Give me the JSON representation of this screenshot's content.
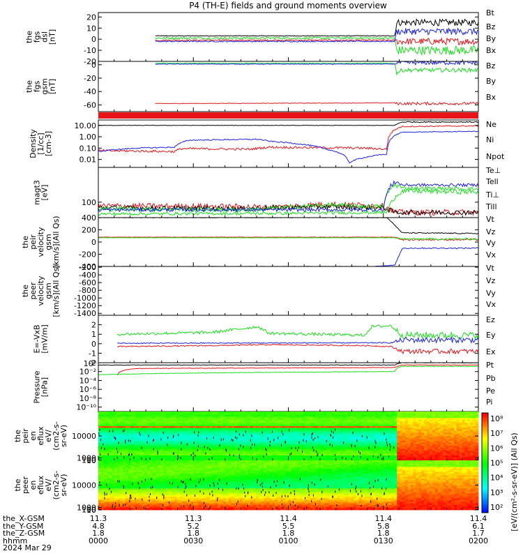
{
  "title": "P4 (TH-E) fields and ground moments overview",
  "colors": {
    "black": "#000000",
    "red": "#e8141a",
    "green": "#18e01c",
    "blue": "#1b22e6"
  },
  "chart_data": [
    {
      "type": "line",
      "name": "fgs_dsl",
      "ylabel_lines": [
        "the",
        "fgs",
        "dsl",
        "[nT]"
      ],
      "ylim": [
        -20,
        24
      ],
      "yticks": [
        20,
        10,
        0,
        -10,
        -20
      ],
      "legend": [
        {
          "label": "Bt",
          "color": "black"
        },
        {
          "label": "Bz",
          "color": "red"
        },
        {
          "label": "By",
          "color": "green"
        },
        {
          "label": "Bx",
          "color": "blue"
        }
      ],
      "series": [
        {
          "name": "Bt",
          "color": "black",
          "x": [
            0.15,
            0.78,
            0.785,
            1.0
          ],
          "y": [
            3,
            3,
            15,
            15
          ],
          "noise": [
            0.3,
            0.3,
            3,
            3
          ]
        },
        {
          "name": "Bz",
          "color": "red",
          "x": [
            0.15,
            0.78,
            0.785,
            1.0
          ],
          "y": [
            -1,
            -1,
            -2,
            -2
          ],
          "noise": [
            0.6,
            0.6,
            3,
            3
          ]
        },
        {
          "name": "By",
          "color": "green",
          "x": [
            0.15,
            0.78,
            0.785,
            1.0
          ],
          "y": [
            1,
            1,
            -10,
            -10
          ],
          "noise": [
            1,
            1,
            4,
            4
          ]
        },
        {
          "name": "Bx",
          "color": "blue",
          "x": [
            0.15,
            0.78,
            0.785,
            1.0
          ],
          "y": [
            -2,
            -2,
            7,
            7
          ],
          "noise": [
            0.5,
            0.5,
            3,
            3
          ]
        }
      ]
    },
    {
      "type": "line",
      "name": "fgs_gsm",
      "ylabel_lines": [
        "the",
        "fgs",
        "gsm",
        "[nT]"
      ],
      "ylim": [
        -70,
        5
      ],
      "yticks": [
        0,
        -20,
        -40,
        -60
      ],
      "legend": [
        {
          "label": "Bz",
          "color": "red"
        },
        {
          "label": "By",
          "color": "green"
        },
        {
          "label": "Bx",
          "color": "blue"
        }
      ],
      "series": [
        {
          "name": "Bz",
          "color": "red",
          "x": [
            0.15,
            0.78,
            0.785,
            1.0
          ],
          "y": [
            -58,
            -57,
            -58,
            -58
          ],
          "noise": [
            0.4,
            0.4,
            2,
            2
          ]
        },
        {
          "name": "By",
          "color": "green",
          "x": [
            0.15,
            0.78,
            0.785,
            0.8,
            1.0
          ],
          "y": [
            2,
            2,
            -12,
            -8,
            -8
          ],
          "noise": [
            0.5,
            0.5,
            3,
            3,
            3
          ]
        },
        {
          "name": "Bx",
          "color": "blue",
          "x": [
            0.15,
            0.78,
            0.785,
            1.0
          ],
          "y": [
            1,
            1,
            3,
            3
          ],
          "noise": [
            0.4,
            0.4,
            3,
            3
          ]
        }
      ]
    },
    {
      "type": "line",
      "name": "density",
      "scale": "log",
      "ylabel_lines": [
        "Density",
        "[1/cc]",
        "[cm-3]"
      ],
      "ylim": [
        0.002,
        30
      ],
      "yticks": [
        10,
        1,
        0.1,
        0.01
      ],
      "ytick_labels": [
        "10.00",
        "1.00",
        "0.10",
        "0.01"
      ],
      "legend": [
        {
          "label": "Ne",
          "color": "red"
        },
        {
          "label": "Ni",
          "color": "black"
        },
        {
          "label": "Npot",
          "color": "blue"
        },
        {
          "label": "Te⊥",
          "color": "red"
        }
      ],
      "series": [
        {
          "name": "Ni",
          "color": "black",
          "x": [
            0.0,
            0.78,
            0.8,
            1.0
          ],
          "y": [
            10,
            10,
            20,
            20
          ],
          "noise": [
            0.02,
            0.02,
            0.05,
            0.05
          ]
        },
        {
          "name": "Ne",
          "color": "red",
          "x": [
            0.0,
            0.2,
            0.22,
            0.4,
            0.45,
            0.7,
            0.76,
            0.8,
            1.0
          ],
          "y": [
            0.06,
            0.05,
            0.09,
            0.08,
            0.12,
            0.1,
            0.08,
            8,
            9
          ],
          "noise": [
            0.1,
            0.1,
            0.1,
            0.1,
            0.1,
            0.1,
            0.1,
            0.05,
            0.05
          ]
        },
        {
          "name": "Npot",
          "color": "blue",
          "x": [
            0.0,
            0.1,
            0.2,
            0.24,
            0.42,
            0.45,
            0.6,
            0.66,
            0.72,
            0.76,
            0.8,
            1.0
          ],
          "y": [
            0.05,
            0.1,
            0.12,
            0.5,
            0.6,
            0.4,
            0.08,
            0.005,
            0.02,
            0.03,
            2.5,
            3
          ],
          "noise": [
            0.05,
            0.05,
            0.05,
            0.05,
            0.05,
            0.05,
            0.05,
            0.05,
            0.05,
            0.05,
            0.03,
            0.03
          ]
        }
      ]
    },
    {
      "type": "line",
      "name": "temperature",
      "scale": "log",
      "ylabel_lines": [
        "magt3",
        "[eV]"
      ],
      "ylim": [
        30,
        1500
      ],
      "yticks": [
        100
      ],
      "ytick_labels": [
        "100"
      ],
      "legend": [
        {
          "label": "Tell",
          "color": "black"
        },
        {
          "label": "Ti⊥",
          "color": "green"
        },
        {
          "label": "Till",
          "color": "green"
        }
      ],
      "series": [
        {
          "name": "Te⊥",
          "color": "red",
          "x": [
            0.0,
            0.4,
            0.45,
            0.6,
            0.75,
            0.78,
            1.0
          ],
          "y": [
            75,
            70,
            65,
            85,
            75,
            45,
            45
          ],
          "noise": [
            0.1,
            0.1,
            0.1,
            0.1,
            0.1,
            0.1,
            0.1
          ]
        },
        {
          "name": "Tell",
          "color": "black",
          "x": [
            0.0,
            0.4,
            0.45,
            0.6,
            0.75,
            0.78,
            1.0
          ],
          "y": [
            65,
            60,
            65,
            70,
            65,
            45,
            45
          ],
          "noise": [
            0.08,
            0.08,
            0.08,
            0.08,
            0.08,
            0.08,
            0.08
          ]
        },
        {
          "name": "Ti⊥",
          "color": "green",
          "x": [
            0.0,
            0.4,
            0.45,
            0.6,
            0.75,
            0.78,
            0.8,
            1.0
          ],
          "y": [
            60,
            55,
            60,
            80,
            70,
            400,
            300,
            280
          ],
          "noise": [
            0.08,
            0.08,
            0.08,
            0.08,
            0.08,
            0.1,
            0.06,
            0.06
          ]
        },
        {
          "name": "Till",
          "color": "blue",
          "x": [
            0.0,
            0.75,
            0.78,
            0.8,
            1.0
          ],
          "y": [
            55,
            55,
            500,
            380,
            380
          ],
          "noise": [
            0.06,
            0.06,
            0.1,
            0.05,
            0.05
          ]
        },
        {
          "name": "Till2",
          "color": "green",
          "x": [
            0.0,
            0.5,
            0.76,
            0.8,
            1.0
          ],
          "y": [
            40,
            42,
            45,
            240,
            220
          ],
          "noise": [
            0.05,
            0.05,
            0.05,
            0.08,
            0.08
          ]
        }
      ]
    },
    {
      "type": "line",
      "name": "pei_velocity",
      "ylabel_lines": [
        "the",
        "peir",
        "velocity",
        "gsm",
        "[km/s](All Qs)"
      ],
      "ylim": [
        -400,
        400
      ],
      "yticks": [
        400,
        200,
        0,
        -200,
        -400
      ],
      "legend": [
        {
          "label": "Vt",
          "color": "black"
        },
        {
          "label": "Vz",
          "color": "red"
        },
        {
          "label": "Vy",
          "color": "green"
        },
        {
          "label": "Vx",
          "color": "blue"
        }
      ],
      "series": [
        {
          "name": "Vt",
          "color": "black",
          "x": [
            0.0,
            0.76,
            0.8,
            1.0
          ],
          "y": [
            400,
            400,
            150,
            140
          ],
          "noise": [
            3,
            3,
            8,
            8
          ]
        },
        {
          "name": "Vz",
          "color": "red",
          "x": [
            0.0,
            0.78,
            0.8,
            1.0
          ],
          "y": [
            80,
            80,
            40,
            40
          ],
          "noise": [
            3,
            3,
            15,
            15
          ]
        },
        {
          "name": "Vy",
          "color": "green",
          "x": [
            0.0,
            0.78,
            0.8,
            1.0
          ],
          "y": [
            70,
            70,
            50,
            50
          ],
          "noise": [
            2,
            2,
            15,
            15
          ]
        },
        {
          "name": "Vx",
          "color": "blue",
          "x": [
            0.0,
            0.72,
            0.78,
            0.8,
            1.0
          ],
          "y": [
            -400,
            -400,
            -380,
            -100,
            -100
          ],
          "noise": [
            2,
            2,
            5,
            10,
            10
          ]
        }
      ]
    },
    {
      "type": "line",
      "name": "peer_velocity",
      "ylabel_lines": [
        "the",
        "peer",
        "velocity",
        "gsm",
        "[km/s](All Qs)"
      ],
      "ylim": [
        -1450,
        -180
      ],
      "yticks": [
        -200,
        -400,
        -600,
        -800,
        -1000,
        -1200,
        -1400
      ],
      "legend": [
        {
          "label": "Vt",
          "color": "black"
        },
        {
          "label": "Vz",
          "color": "red"
        },
        {
          "label": "Vy",
          "color": "green"
        },
        {
          "label": "Vx",
          "color": "blue"
        }
      ],
      "series": []
    },
    {
      "type": "line",
      "name": "efield",
      "ylabel_lines": [
        "E=-VxB",
        "[mV/m]"
      ],
      "ylim": [
        -2,
        3
      ],
      "yticks": [
        2,
        1,
        0,
        -1,
        -2
      ],
      "legend": [
        {
          "label": "Ez",
          "color": "red"
        },
        {
          "label": "Ey",
          "color": "green"
        },
        {
          "label": "Ex",
          "color": "blue"
        }
      ],
      "series": [
        {
          "name": "Ey",
          "color": "green",
          "x": [
            0.05,
            0.3,
            0.42,
            0.45,
            0.7,
            0.72,
            0.77,
            0.8,
            1.0
          ],
          "y": [
            1.0,
            1.2,
            1.8,
            1.1,
            0.9,
            1.8,
            1.9,
            0.9,
            0.9
          ],
          "noise": [
            0.15,
            0.15,
            0.15,
            0.15,
            0.15,
            0.15,
            0.15,
            0.35,
            0.35
          ]
        },
        {
          "name": "Ex",
          "color": "blue",
          "x": [
            0.05,
            0.77,
            0.8,
            1.0
          ],
          "y": [
            0.05,
            0.1,
            0.4,
            0.4
          ],
          "noise": [
            0.05,
            0.05,
            0.3,
            0.3
          ]
        },
        {
          "name": "Ez",
          "color": "red",
          "x": [
            0.05,
            0.3,
            0.45,
            0.7,
            0.77,
            0.8,
            1.0
          ],
          "y": [
            -0.3,
            -0.2,
            -0.1,
            -0.2,
            -0.3,
            -0.8,
            -0.8
          ],
          "noise": [
            0.06,
            0.06,
            0.06,
            0.06,
            0.06,
            0.25,
            0.25
          ]
        }
      ]
    },
    {
      "type": "line",
      "name": "pressure",
      "scale": "log",
      "ylabel_lines": [
        "Pressure",
        "[nPa]"
      ],
      "ylim": [
        1e-11,
        1
      ],
      "yticks": [
        0.01,
        0.0001,
        1e-06,
        1e-08,
        1e-10
      ],
      "ytick_labels": [
        "10⁻²",
        "10⁻⁴",
        "10⁻⁶",
        "10⁻⁸",
        "10⁻¹⁰"
      ],
      "ytop_label": "10⁰",
      "legend": [
        {
          "label": "Pt",
          "color": "black"
        },
        {
          "label": "Pb",
          "color": "red"
        },
        {
          "label": "Pe",
          "color": "green"
        },
        {
          "label": "Pi",
          "color": "blue"
        }
      ],
      "series": [
        {
          "name": "Pt",
          "color": "black",
          "x": [
            0.0,
            0.78,
            0.8,
            1.0
          ],
          "y": [
            0.3,
            0.3,
            1.0,
            1.0
          ],
          "noise": [
            0.05,
            0.05,
            0.05,
            0.05
          ]
        },
        {
          "name": "Pb",
          "color": "red",
          "x": [
            0.05,
            0.1,
            0.78,
            0.8,
            1.0
          ],
          "y": [
            0.0015,
            0.05,
            0.08,
            0.3,
            0.3
          ],
          "noise": [
            0.05,
            0.05,
            0.05,
            0.05,
            0.05
          ]
        },
        {
          "name": "Pe",
          "color": "green",
          "x": [
            0.0,
            0.78,
            0.8,
            1.0
          ],
          "y": [
            0.002,
            0.01,
            0.15,
            0.15
          ],
          "noise": [
            0.05,
            0.05,
            0.05,
            0.05
          ]
        }
      ]
    },
    {
      "type": "heatmap",
      "name": "peir_eflux",
      "ylabel_lines": [
        "the",
        "peir",
        "en",
        "eflux",
        "eV/",
        "(cm2-s-",
        "sr-eV)"
      ],
      "ylim": [
        5,
        20000
      ],
      "yticks": [
        10000,
        1000,
        100,
        10
      ],
      "ytick_labels": [
        "10000",
        "1000",
        "100",
        "10"
      ]
    },
    {
      "type": "heatmap",
      "name": "peer_eflux",
      "ylabel_lines": [
        "the",
        "peer",
        "en",
        "eflux",
        "eV/",
        "(cm2-s-",
        "sr-eV)"
      ],
      "ylim": [
        5,
        20000
      ],
      "yticks": [
        10000,
        1000,
        100,
        10
      ],
      "ytick_labels": [
        "10000",
        "1000",
        "100",
        "10"
      ]
    }
  ],
  "colorbar": {
    "tick_labels": [
      "10⁸",
      "10⁷",
      "10⁶",
      "10⁵",
      "10⁴",
      "10³",
      "10²"
    ],
    "label": "[eV/(cm²-s-sr-eV)] (All Qs)"
  },
  "xaxis": {
    "row_labels": [
      "the_X-GSM",
      "the_Y-GSM",
      "the_Z-GSM",
      "hhmm",
      "2024 Mar 29"
    ],
    "columns": [
      {
        "values": [
          "11.3",
          "4.8",
          "1.8",
          "0000"
        ]
      },
      {
        "values": [
          "11.3",
          "5.2",
          "1.8",
          "0030"
        ]
      },
      {
        "values": [
          "11.4",
          "5.5",
          "1.8",
          "0100"
        ]
      },
      {
        "values": [
          "11.4",
          "5.8",
          "1.8",
          "0130"
        ]
      },
      {
        "values": [
          "11.4",
          "6.1",
          "1.7",
          "0200"
        ]
      }
    ]
  }
}
